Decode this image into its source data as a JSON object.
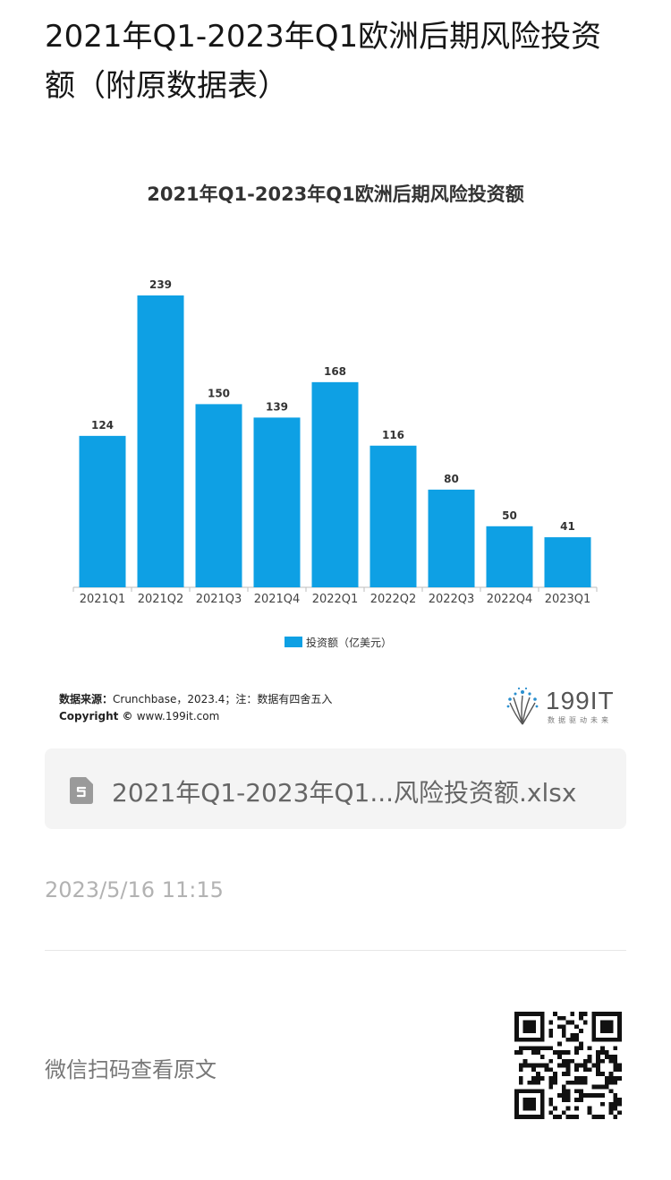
{
  "article": {
    "title": "2021年Q1-2023年Q1欧洲后期风险投资额（附原数据表）"
  },
  "chart_data": {
    "type": "bar",
    "title": "2021年Q1-2023年Q1欧洲后期风险投资额",
    "categories": [
      "2021Q1",
      "2021Q2",
      "2021Q3",
      "2021Q4",
      "2022Q1",
      "2022Q2",
      "2022Q3",
      "2022Q4",
      "2023Q1"
    ],
    "series": [
      {
        "name": "投资额（亿美元）",
        "values": [
          124,
          239,
          150,
          139,
          168,
          116,
          80,
          50,
          41
        ],
        "color": "#0ea0e4"
      }
    ],
    "ylim": [
      0,
      239
    ],
    "grid": false,
    "legend": "bottom",
    "xlabel": "",
    "ylabel": ""
  },
  "source": {
    "source_label": "数据来源：",
    "source_text": "Crunchbase，2023.4；注：数据有四舍五入",
    "copyright_label": "Copyright © ",
    "copyright_text": "www.199it.com"
  },
  "logo": {
    "text": "199IT",
    "subtitle": "数据驱动未来"
  },
  "attachment": {
    "file_name": "2021年Q1-2023年Q1...风险投资额.xlsx",
    "icon": "spreadsheet-file-icon"
  },
  "timestamp": "2023/5/16 11:15",
  "qr": {
    "label": "微信扫码查看原文",
    "icon": "qr-code"
  }
}
